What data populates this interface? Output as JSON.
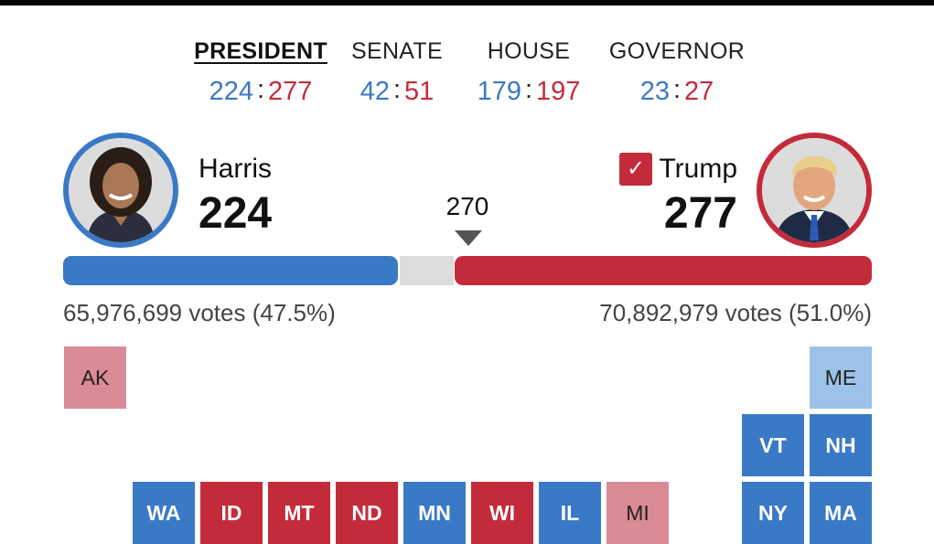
{
  "tabs": [
    {
      "label": "PRESIDENT",
      "dem": "224",
      "rep": "277",
      "active": true
    },
    {
      "label": "SENATE",
      "dem": "42",
      "rep": "51"
    },
    {
      "label": "HOUSE",
      "dem": "179",
      "rep": "197"
    },
    {
      "label": "GOVERNOR",
      "dem": "23",
      "rep": "27"
    }
  ],
  "separator": ":",
  "harris": {
    "name": "Harris",
    "electoral": "224",
    "popular": "65,976,699 votes (47.5%)"
  },
  "trump": {
    "name": "Trump",
    "electoral": "277",
    "popular": "70,892,979 votes (51.0%)",
    "winner_check": "✓"
  },
  "threshold": "270",
  "bar_shares": {
    "dem": 0.4161,
    "undecided": 0.0725,
    "rep": 0.5114
  },
  "colors": {
    "dem": "#3a79c5",
    "rep": "#c42b3a",
    "lean_rep": "#da8b96",
    "lean_dem": "#9cc2e9",
    "undecided": "#dddddd"
  },
  "states": {
    "AK": "AK",
    "ME": "ME",
    "VT": "VT",
    "NH": "NH",
    "WA": "WA",
    "ID": "ID",
    "MT": "MT",
    "ND": "ND",
    "MN": "MN",
    "WI": "WI",
    "IL": "IL",
    "MI": "MI",
    "NY": "NY",
    "MA": "MA"
  }
}
